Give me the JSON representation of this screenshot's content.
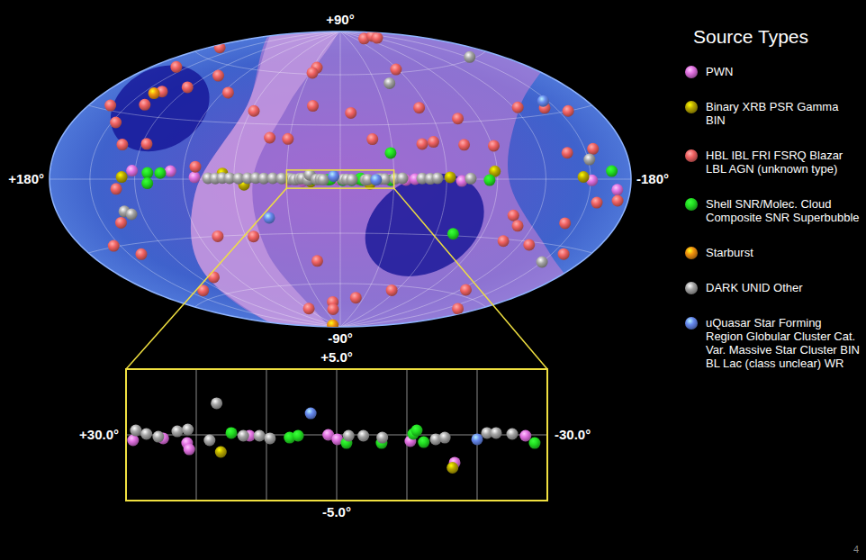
{
  "chart_data": {
    "type": "sky_map",
    "xlim": [
      180,
      -180
    ],
    "ylim": [
      -90,
      90
    ],
    "xticks": [
      {
        "value": 180,
        "label": "+180°"
      },
      {
        "value": -180,
        "label": "-180°"
      }
    ],
    "yticks": [
      {
        "value": 90,
        "label": "+90°"
      },
      {
        "value": -90,
        "label": "-90°"
      }
    ],
    "grid": true,
    "xgrid": [
      150,
      120,
      90,
      60,
      30,
      0,
      -30,
      -60,
      -90,
      -120,
      -150
    ],
    "ygrid": [
      60,
      30,
      0,
      -30,
      -60
    ],
    "legend": "right",
    "legend_title": "Source Types",
    "series": [
      {
        "name": "PWN",
        "color": "#e070e0",
        "marker": "sphere",
        "x": [
          29.0,
          24.7,
          21.3,
          21.0,
          12.4,
          1.2,
          -0.1,
          -10.5,
          -16.8,
          -26.9,
          122,
          97.8,
          83.1,
          -36.8,
          -41.9,
          -68.8,
          -151,
          -170
        ],
        "y": [
          -0.41,
          -0.27,
          -0.62,
          -1.1,
          -0.07,
          0,
          -0.34,
          -0.48,
          -2.12,
          -0.07,
          4,
          4,
          1,
          -0.5,
          0,
          -1,
          -0.5,
          -4.3
        ]
      },
      {
        "name": "Binary XRB PSR Gamma BIN",
        "color": "#b8a800",
        "marker": "sphere",
        "x": [
          16.5,
          -16.5,
          128.5,
          66.7,
          54.2,
          -62,
          -88.5,
          -145
        ],
        "y": [
          -1.3,
          -2.5,
          1,
          3,
          -3,
          1,
          4,
          1
        ]
      },
      {
        "name": "HBL IBL FRI FSRQ Blazar LBL AGN (unknown type)",
        "color": "#f06262",
        "marker": "sphere",
        "x": [
          171,
          -89,
          -134,
          -125,
          25.6,
          27.7,
          -58,
          160,
          137,
          122,
          163,
          147,
          133,
          117,
          86,
          58,
          19,
          -7,
          -54,
          -76,
          -48,
          -55,
          -73,
          -123,
          -142,
          -137,
          42,
          31,
          -19,
          83,
          78,
          55,
          17,
          57,
          11,
          14,
          -20,
          -55,
          136,
          137,
          141,
          155,
          -125,
          -104,
          -110,
          -107,
          -127,
          -159,
          -157,
          -172,
          -162,
          108,
          -141,
          111,
          138,
          -91,
          -157,
          -156,
          132.5
        ],
        "y": [
          65,
          83,
          83,
          81.5,
          64.3,
          60.9,
          62,
          53,
          42,
          46,
          32,
          25.5,
          16,
          17,
          46,
          37,
          41,
          37,
          39,
          32,
          19,
          20,
          18,
          35,
          33,
          12,
          22.5,
          22,
          22,
          6.4,
          -30,
          -31,
          -46,
          -75.5,
          -72,
          -77,
          -69,
          -63,
          -56,
          -20,
          -35,
          -29.5,
          -57,
          -18,
          -23,
          -31,
          -31.5,
          -33,
          -10,
          -8.7,
          -65,
          -51,
          -20,
          54,
          35,
          17,
          30,
          13,
          -4.5
        ]
      },
      {
        "name": "Shell SNR/Molec. Cloud Composite SNR Superbubble",
        "color": "#22e022",
        "marker": "sphere",
        "x": [
          15.0,
          6.7,
          5.5,
          -1.4,
          -6.4,
          -10.9,
          -11.4,
          -12.4,
          -28.2,
          112,
          104,
          112,
          -28.8,
          -71,
          -85.2,
          -165.6
        ],
        "y": [
          0.14,
          -0.21,
          -0.07,
          -0.62,
          -0.62,
          0.07,
          0.34,
          -0.55,
          -0.62,
          3,
          3,
          -2,
          14.3,
          -29,
          -0.5,
          3.3
        ]
      },
      {
        "name": "Starburst",
        "color": "#f09010",
        "marker": "sphere",
        "x": [
          141.4,
          97.4
        ],
        "y": [
          40.6,
          -88.0
        ]
      },
      {
        "name": "DARK UNID Other",
        "color": "#a4a4a4",
        "marker": "sphere",
        "x": [
          28.6,
          27.1,
          25.4,
          22.7,
          21.2,
          18.1,
          17.1,
          13.3,
          11.0,
          9.5,
          -1.7,
          -3.8,
          -6.5,
          -14.1,
          -15.4,
          -21.4,
          -22.7,
          -25.0,
          75.1,
          70.8,
          66.7,
          62.5,
          57.3,
          52.1,
          47.5,
          42.9,
          37.8,
          32.7,
          -30.7,
          -34.8,
          -46,
          -50.6,
          -54.7,
          -74,
          -42,
          -152,
          -150,
          131,
          127,
          -151
        ],
        "y": [
          0.34,
          0.07,
          -0.14,
          0.27,
          0.41,
          -0.41,
          2.4,
          -0.07,
          -0.07,
          -0.27,
          -0.07,
          -0.07,
          -0.21,
          -0.34,
          -0.21,
          0.14,
          0.14,
          0.07,
          0.5,
          0.4,
          0.6,
          0.5,
          0.4,
          0.5,
          0.6,
          0.4,
          0.5,
          0.4,
          0.3,
          0.5,
          0.4,
          0.2,
          0.5,
          0.3,
          54,
          61,
          -38,
          -15,
          -16.5,
          8.6
        ]
      },
      {
        "name": "uQuasar Star Forming Region Globular Cluster Cat. Var. Massive Star Cluster BIN BL Lac (class unclear) WR",
        "color": "#6688ee",
        "marker": "sphere",
        "x": [
          3.7,
          -20.0,
          42,
          -146.5
        ],
        "y": [
          1.64,
          -0.34,
          -21,
          36
        ]
      }
    ],
    "inset": {
      "xlim": [
        30,
        -30
      ],
      "ylim": [
        -5,
        5
      ],
      "xticks": [
        {
          "value": 30,
          "label": "+30.0°"
        },
        {
          "value": -30,
          "label": "-30.0°"
        }
      ],
      "yticks": [
        {
          "value": 5,
          "label": "+5.0°"
        },
        {
          "value": -5,
          "label": "-5.0°"
        }
      ],
      "xgrid": [
        20,
        10,
        0,
        -10,
        -20
      ],
      "ygrid": [
        0
      ]
    },
    "page_number": "4"
  }
}
